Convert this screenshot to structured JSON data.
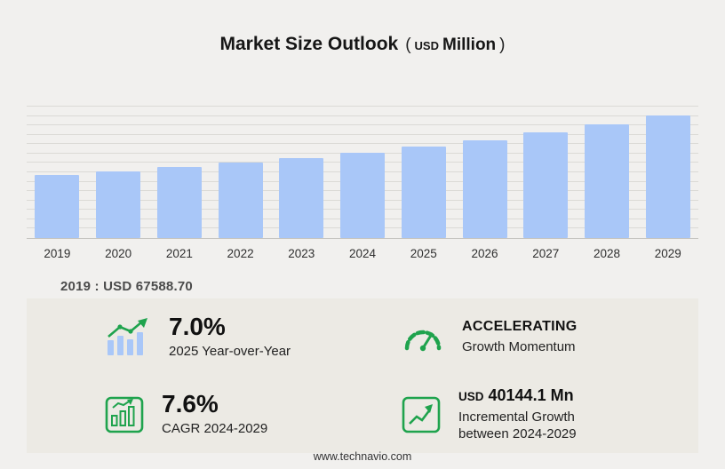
{
  "title": {
    "main": "Market Size Outlook",
    "paren_open": "(",
    "unit_currency": "USD",
    "unit_word": "Million",
    "paren_close": ")"
  },
  "chart_data": {
    "type": "bar",
    "title": "Market Size Outlook (USD Million)",
    "categories": [
      "2019",
      "2020",
      "2021",
      "2022",
      "2023",
      "2024",
      "2025",
      "2026",
      "2027",
      "2028",
      "2029"
    ],
    "values": [
      67588.7,
      71350,
      75480,
      80050,
      85160,
      90740,
      97090,
      104160,
      112150,
      121080,
      130880
    ],
    "xlabel": "",
    "ylabel": "",
    "ylim": [
      0,
      140000
    ],
    "gridline_step": 10000,
    "grid": true,
    "legend": false,
    "bar_color": "#a9c7f8"
  },
  "annotation": {
    "base_year": "2019 : USD  67588.70"
  },
  "stats": {
    "yoy": {
      "value": "7.0%",
      "label": "2025 Year-over-Year"
    },
    "momentum": {
      "value": "ACCELERATING",
      "label": "Growth Momentum"
    },
    "cagr": {
      "value": "7.6%",
      "label": "CAGR 2024-2029"
    },
    "incremental": {
      "currency": "USD",
      "value": "40144.1 Mn",
      "label_line1": "Incremental Growth",
      "label_line2": "between 2024-2029"
    }
  },
  "footer": {
    "url": "www.technavio.com"
  },
  "colors": {
    "accent_green": "#1fa34d",
    "bar_blue": "#a9c7f8"
  }
}
